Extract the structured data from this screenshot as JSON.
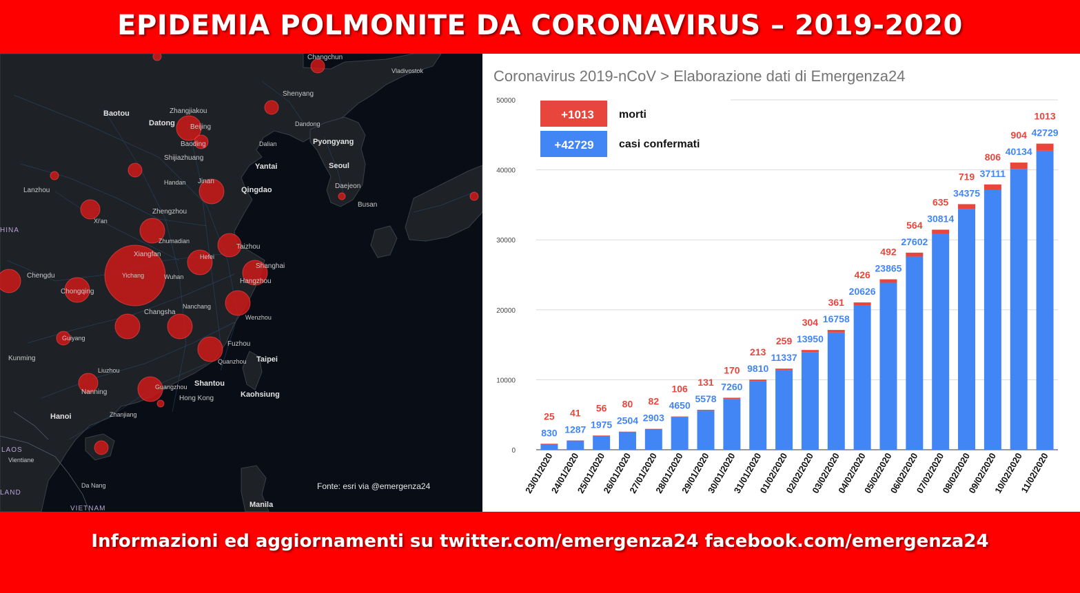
{
  "header": {
    "title": "EPIDEMIA POLMONITE DA CORONAVIRUS – 2019-2020"
  },
  "map": {
    "credit": "Fonte: esri via @emergenza24",
    "country_labels": [
      "HINA",
      "LAOS",
      "LAND",
      "VIETNAM"
    ],
    "city_labels": [
      "Changchun",
      "Vladivostok",
      "Baotou",
      "Zhangjiakou",
      "Shenyang",
      "Datong",
      "Beijing",
      "Dandong",
      "Baoding",
      "Dalian",
      "Pyongyang",
      "Shijiazhuang",
      "Yantai",
      "Seoul",
      "Lanzhou",
      "Handan",
      "Jinan",
      "Qingdao",
      "Daejeon",
      "Busan",
      "Xi'an",
      "Zhengzhou",
      "Zhumadian",
      "Xiangfan",
      "Taizhou",
      "Hefei",
      "Shanghai",
      "Chengdu",
      "Yichang",
      "Wuhan",
      "Hangzhou",
      "Chongqing",
      "Nanchang",
      "Changsha",
      "Wenzhou",
      "Guiyang",
      "Fuzhou",
      "Kunming",
      "Quanzhou",
      "Taipei",
      "Liuzhou",
      "Shantou",
      "Nanning",
      "Guangzhou",
      "Hong Kong",
      "Kaohsiung",
      "Hanoi",
      "Zhanjiang",
      "Vientiane",
      "Da Nang",
      "Manila"
    ]
  },
  "chart": {
    "title": "Coronavirus 2019-nCoV > Elaborazione dati di Emergenza24",
    "legend": [
      {
        "badge": "+1013",
        "label": "morti",
        "color": "#e8453c"
      },
      {
        "badge": "+42729",
        "label": "casi confermati",
        "color": "#4285f4"
      }
    ]
  },
  "chart_data": {
    "type": "bar",
    "stacked": true,
    "categories": [
      "23/01/2020",
      "24/01/2020",
      "25/01/2020",
      "26/01/2020",
      "27/01/2020",
      "28/01/2020",
      "29/01/2020",
      "30/01/2020",
      "31/01/2020",
      "01/02/2020",
      "02/02/2020",
      "03/02/2020",
      "04/02/2020",
      "05/02/2020",
      "06/02/2020",
      "07/02/2020",
      "08/02/2020",
      "09/02/2020",
      "10/02/2020",
      "11/02/2020"
    ],
    "series": [
      {
        "name": "casi confermati",
        "color": "#4285f4",
        "values": [
          830,
          1287,
          1975,
          2504,
          2903,
          4650,
          5578,
          7260,
          9810,
          11337,
          13950,
          16758,
          20626,
          23865,
          27602,
          30814,
          34375,
          37111,
          40134,
          42729
        ]
      },
      {
        "name": "morti",
        "color": "#e8453c",
        "values": [
          25,
          41,
          56,
          80,
          82,
          106,
          131,
          170,
          213,
          259,
          304,
          361,
          426,
          492,
          564,
          635,
          719,
          806,
          904,
          1013
        ]
      }
    ],
    "yticks": [
      0,
      10000,
      20000,
      30000,
      40000,
      50000
    ],
    "ylim": [
      0,
      50000
    ],
    "grid": true,
    "legend_position": "top-left"
  },
  "footer": {
    "text": "Informazioni ed aggiornamenti su twitter.com/emergenza24  facebook.com/emergenza24"
  }
}
